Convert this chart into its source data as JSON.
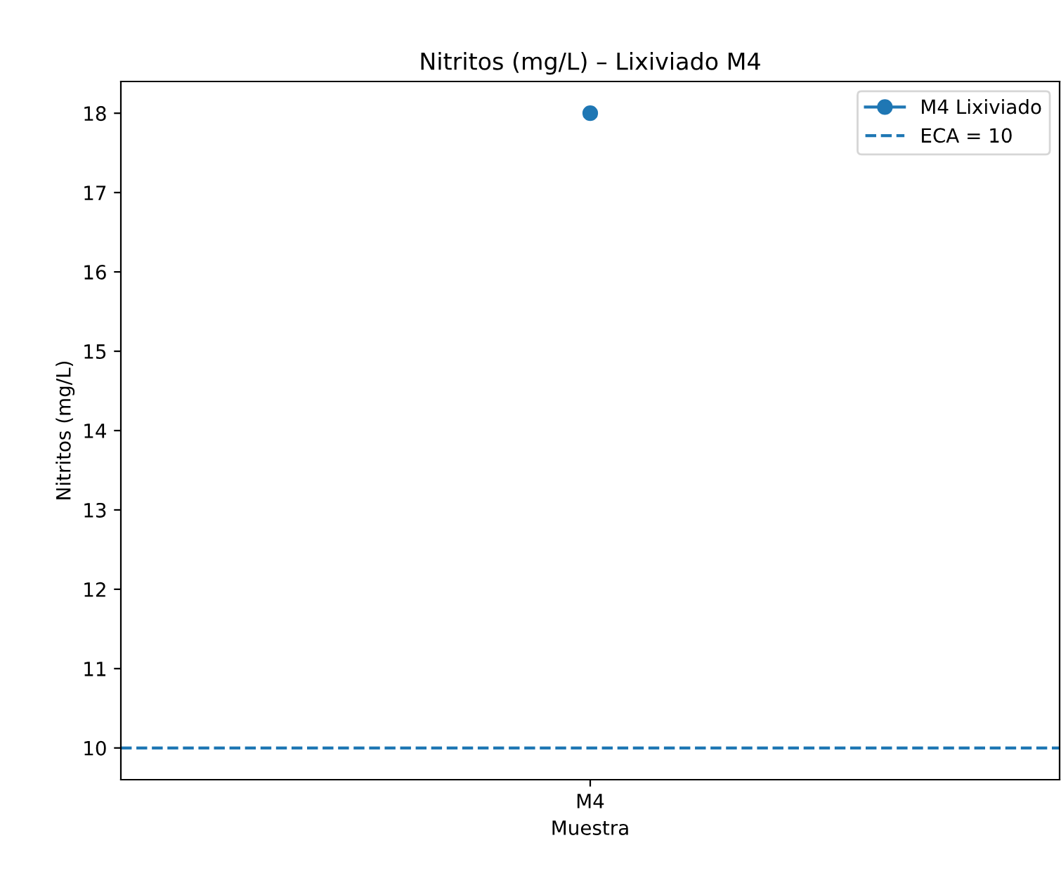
{
  "chart_data": {
    "type": "line",
    "title": "Nitritos (mg/L) – Lixiviado M4",
    "xlabel": "Muestra",
    "ylabel": "Nitritos (mg/L)",
    "categories": [
      "M4"
    ],
    "series": [
      {
        "name": "M4 Lixiviado",
        "color": "#1f77b4",
        "values": [
          18
        ]
      }
    ],
    "marker": "circle",
    "ylim": [
      9.6,
      18.4
    ],
    "yticks": [
      10,
      11,
      12,
      13,
      14,
      15,
      16,
      17,
      18
    ],
    "ref_lines": [
      {
        "axis": "y",
        "value": 10,
        "label": "ECA = 10",
        "color": "#1f77b4",
        "line_style": "dashed"
      }
    ],
    "legend": "top right",
    "grid": false
  }
}
